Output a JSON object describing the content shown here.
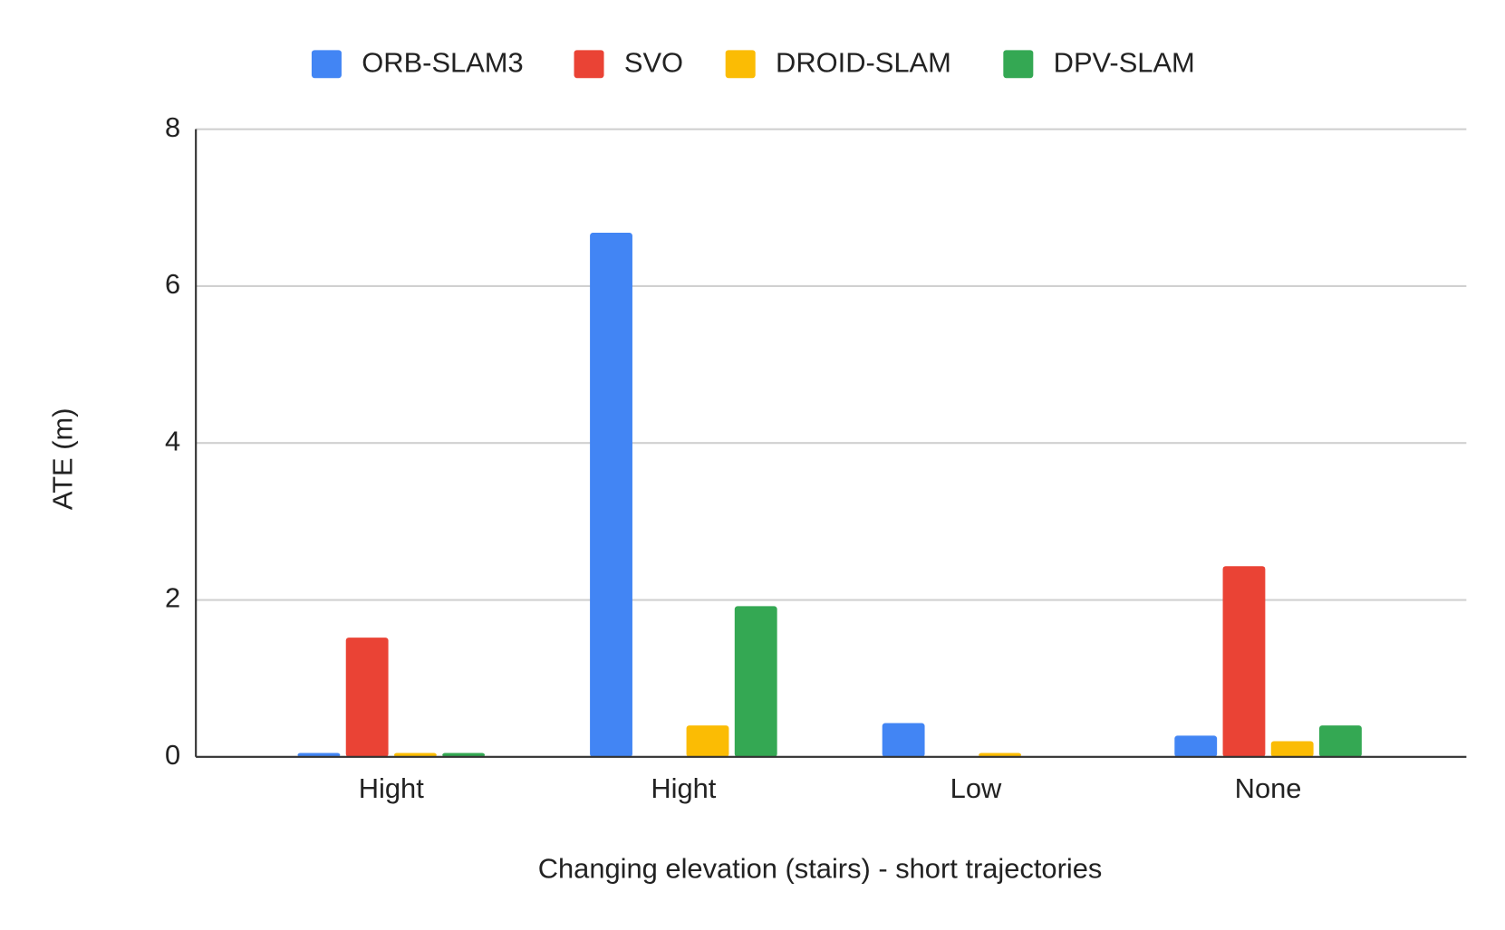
{
  "chart_data": {
    "type": "bar",
    "x_label": "Changing elevation (stairs) - short trajectories",
    "y_label": "ATE (m)",
    "categories": [
      "Hight",
      "Hight",
      "Low",
      "None"
    ],
    "series": [
      {
        "name": "ORB-SLAM3",
        "color": "#4285f4",
        "values": [
          0.05,
          6.68,
          0.43,
          0.27
        ]
      },
      {
        "name": "SVO",
        "color": "#ea4335",
        "values": [
          1.52,
          null,
          null,
          2.43
        ]
      },
      {
        "name": "DROID-SLAM",
        "color": "#fbbc04",
        "values": [
          0.05,
          0.4,
          0.05,
          0.2
        ]
      },
      {
        "name": "DPV-SLAM",
        "color": "#34a853",
        "values": [
          0.05,
          1.92,
          null,
          0.4
        ]
      }
    ],
    "ylim": [
      0,
      8
    ],
    "yticks": [
      0,
      2,
      4,
      6,
      8
    ],
    "grid": true,
    "legend": "top"
  }
}
